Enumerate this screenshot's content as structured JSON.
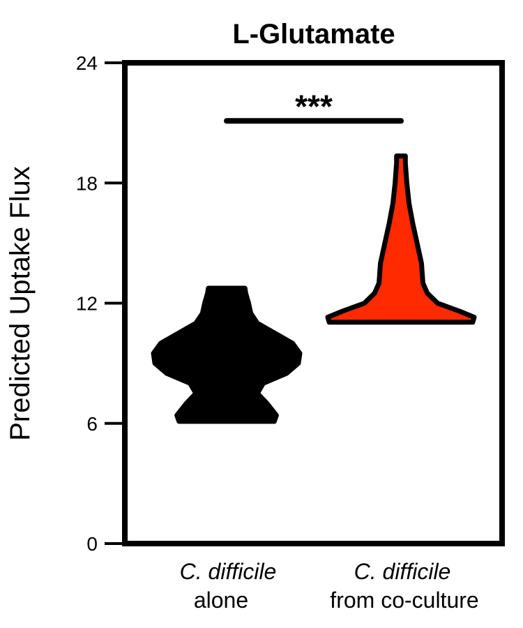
{
  "chart_data": {
    "type": "violin",
    "title": "L-Glutamate",
    "ylabel": "Predicted Uptake Flux",
    "xlabel": "",
    "ylim": [
      0,
      24
    ],
    "yticks": [
      "0",
      "6",
      "12",
      "18",
      "24"
    ],
    "categories": [
      {
        "line1": "C. difficile",
        "line2": "alone"
      },
      {
        "line1": "C. difficile",
        "line2": "from co-culture"
      }
    ],
    "series": [
      {
        "fill": "#000000",
        "profile": [
          [
            6.1,
            0.65
          ],
          [
            6.4,
            0.68
          ],
          [
            7.0,
            0.55
          ],
          [
            7.5,
            0.42
          ],
          [
            8.0,
            0.5
          ],
          [
            8.5,
            0.82
          ],
          [
            9.0,
            0.98
          ],
          [
            9.5,
            1.0
          ],
          [
            10.0,
            0.9
          ],
          [
            10.5,
            0.66
          ],
          [
            11.0,
            0.42
          ],
          [
            11.5,
            0.33
          ],
          [
            12.0,
            0.3
          ],
          [
            12.5,
            0.26
          ],
          [
            12.75,
            0.25
          ]
        ]
      },
      {
        "fill": "#FF2A00",
        "profile": [
          [
            11.05,
            0.98
          ],
          [
            11.3,
            1.0
          ],
          [
            11.6,
            0.8
          ],
          [
            12.0,
            0.5
          ],
          [
            12.5,
            0.36
          ],
          [
            13.0,
            0.3
          ],
          [
            14.0,
            0.28
          ],
          [
            15.0,
            0.22
          ],
          [
            16.0,
            0.16
          ],
          [
            17.0,
            0.11
          ],
          [
            18.0,
            0.08
          ],
          [
            19.0,
            0.06
          ],
          [
            19.35,
            0.06
          ]
        ]
      }
    ],
    "significance": {
      "label": "***",
      "from": 0,
      "to": 1,
      "y": 21.1
    },
    "grid": false,
    "legend": "none"
  }
}
